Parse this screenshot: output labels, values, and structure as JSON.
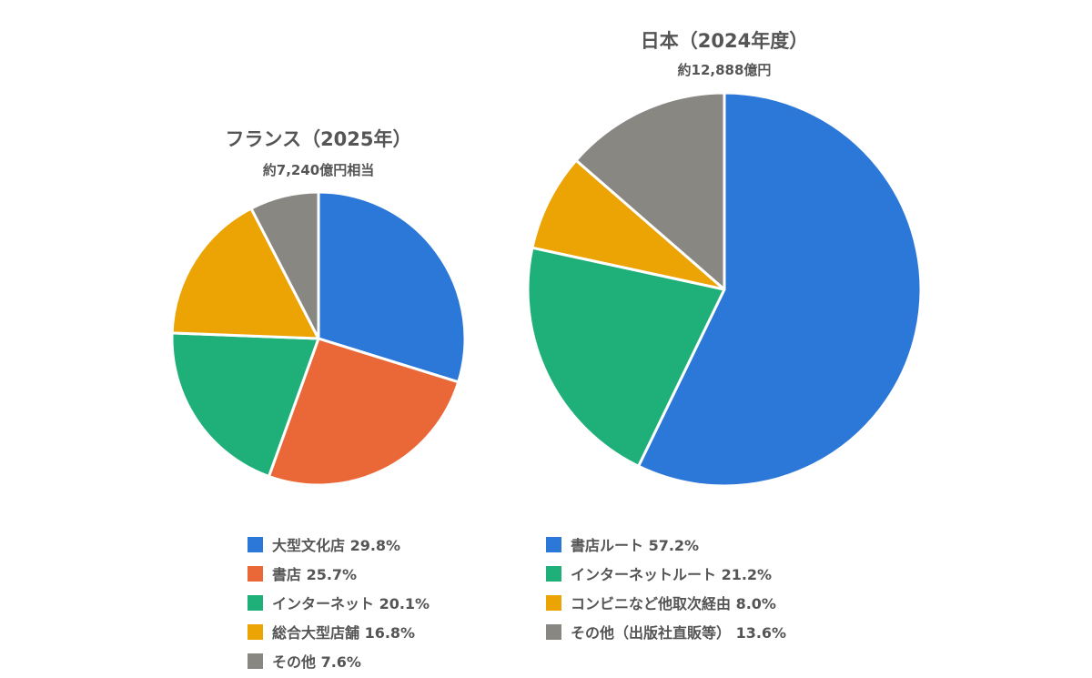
{
  "chart_data": [
    {
      "type": "pie",
      "title": "フランス（2025年）",
      "subtitle": "約7,240億円相当",
      "slices": [
        {
          "label": "大型文化店",
          "value": 29.8,
          "color": "#2b78d8",
          "legend": "大型文化店 29.8%"
        },
        {
          "label": "書店",
          "value": 25.7,
          "color": "#ea6838",
          "legend": "書店 25.7%"
        },
        {
          "label": "インターネット",
          "value": 20.1,
          "color": "#1fb07a",
          "legend": "インターネット 20.1%"
        },
        {
          "label": "総合大型店舗",
          "value": 16.8,
          "color": "#eca404",
          "legend": "総合大型店舗 16.8%"
        },
        {
          "label": "その他",
          "value": 7.6,
          "color": "#898782",
          "legend": "その他 7.6%"
        }
      ]
    },
    {
      "type": "pie",
      "title": "日本（2024年度）",
      "subtitle": "約12,888億円",
      "slices": [
        {
          "label": "書店ルート",
          "value": 57.2,
          "color": "#2b78d8",
          "legend": "書店ルート 57.2%"
        },
        {
          "label": "インターネットルート",
          "value": 21.2,
          "color": "#1fb07a",
          "legend": "インターネットルート 21.2%"
        },
        {
          "label": "コンビニなど他取次経由",
          "value": 8.0,
          "color": "#eca404",
          "legend": "コンビニなど他取次経由 8.0%"
        },
        {
          "label": "その他（出版社直販等）",
          "value": 13.6,
          "color": "#898782",
          "legend": "その他（出版社直販等） 13.6%"
        }
      ]
    }
  ]
}
